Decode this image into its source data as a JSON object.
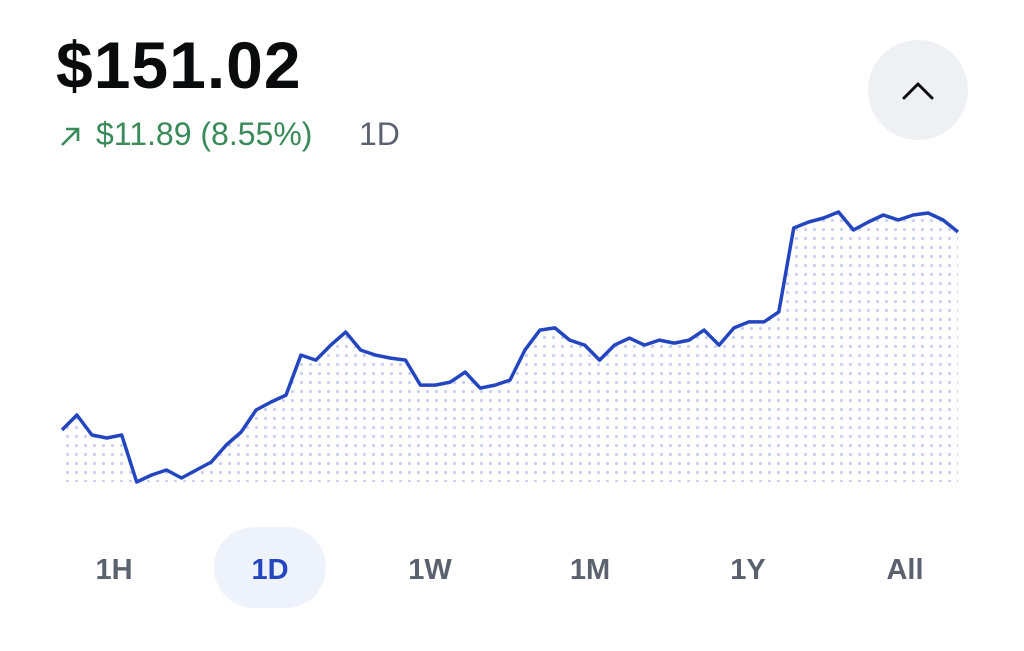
{
  "header": {
    "price": "$151.02",
    "change": "$11.89 (8.55%)",
    "period": "1D"
  },
  "chart_data": {
    "type": "line",
    "color": "#2346c0",
    "values": [
      139.13,
      140.03,
      138.83,
      138.65,
      138.83,
      136.01,
      136.43,
      136.73,
      136.25,
      136.73,
      137.21,
      138.23,
      139.01,
      140.33,
      140.81,
      141.23,
      143.63,
      143.33,
      144.23,
      145.01,
      143.93,
      143.63,
      143.45,
      143.33,
      141.83,
      141.83,
      142.01,
      142.61,
      141.65,
      141.83,
      142.13,
      143.93,
      145.13,
      145.26,
      144.53,
      144.23,
      143.33,
      144.23,
      144.65,
      144.23,
      144.53,
      144.35,
      144.53,
      145.13,
      144.23,
      145.26,
      145.62,
      145.62,
      146.22,
      151.26,
      151.62,
      151.86,
      152.22,
      151.14,
      151.62,
      152.04,
      151.74,
      152.04,
      152.16,
      151.74,
      151.02
    ]
  },
  "tabs": {
    "options": [
      "1H",
      "1D",
      "1W",
      "1M",
      "1Y",
      "All"
    ],
    "selected": "1D"
  }
}
